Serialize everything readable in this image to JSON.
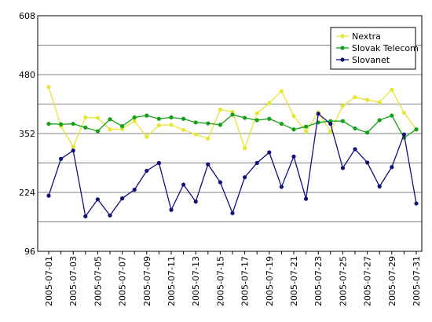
{
  "chart_data": {
    "type": "line",
    "title": "",
    "xlabel": "",
    "ylabel": "",
    "ylim": [
      96,
      608
    ],
    "yticks": [
      96,
      224,
      352,
      480,
      608
    ],
    "grid": "horizontal",
    "legend_position": "top-right",
    "x": [
      "2005-07-01",
      "2005-07-02",
      "2005-07-03",
      "2005-07-04",
      "2005-07-05",
      "2005-07-06",
      "2005-07-07",
      "2005-07-08",
      "2005-07-09",
      "2005-07-10",
      "2005-07-11",
      "2005-07-12",
      "2005-07-13",
      "2005-07-14",
      "2005-07-15",
      "2005-07-16",
      "2005-07-17",
      "2005-07-18",
      "2005-07-19",
      "2005-07-20",
      "2005-07-21",
      "2005-07-22",
      "2005-07-23",
      "2005-07-24",
      "2005-07-25",
      "2005-07-26",
      "2005-07-27",
      "2005-07-28",
      "2005-07-29",
      "2005-07-30",
      "2005-07-31"
    ],
    "xtick_labels": [
      "2005-07-01",
      "2005-07-03",
      "2005-07-05",
      "2005-07-07",
      "2005-07-09",
      "2005-07-11",
      "2005-07-13",
      "2005-07-15",
      "2005-07-17",
      "2005-07-19",
      "2005-07-21",
      "2005-07-23",
      "2005-07-25",
      "2005-07-27",
      "2005-07-29",
      "2005-07-31"
    ],
    "series": [
      {
        "name": "Nextra",
        "color": "#e6e632",
        "values": [
          453,
          368,
          323,
          387,
          386,
          361,
          362,
          379,
          345,
          370,
          371,
          360,
          350,
          341,
          404,
          399,
          320,
          396,
          418,
          444,
          390,
          356,
          398,
          356,
          412,
          431,
          425,
          420,
          447,
          397,
          361
        ]
      },
      {
        "name": "Slovak Telecom",
        "color": "#14a014",
        "values": [
          373,
          372,
          373,
          365,
          357,
          383,
          368,
          387,
          391,
          384,
          387,
          384,
          376,
          374,
          371,
          393,
          386,
          381,
          384,
          373,
          361,
          367,
          376,
          379,
          379,
          363,
          354,
          381,
          391,
          343,
          361
        ]
      },
      {
        "name": "Slovanet",
        "color": "#10107a",
        "values": [
          217,
          297,
          315,
          172,
          209,
          174,
          211,
          230,
          271,
          288,
          186,
          241,
          204,
          285,
          246,
          179,
          257,
          288,
          311,
          236,
          302,
          210,
          395,
          373,
          277,
          318,
          289,
          237,
          279,
          350,
          200
        ]
      }
    ]
  }
}
